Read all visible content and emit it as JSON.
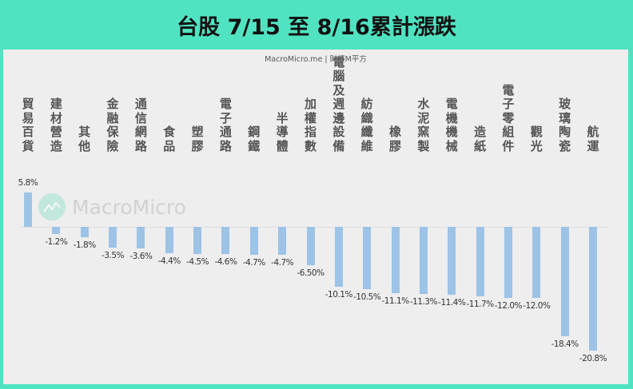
{
  "title": "台股 7/15 至 8/16累計漲跌",
  "source": "MacroMicro.me | 財經M平方",
  "watermark": "MacroMicro",
  "colors": {
    "frame": "#50e3c2",
    "bar": "#9dc3e6",
    "panel": "#eeeeee"
  },
  "chart_data": {
    "type": "bar",
    "title": "台股 7/15 至 8/16累計漲跌",
    "xlabel": "",
    "ylabel": "",
    "categories": [
      "貿易百貨",
      "建材營造",
      "其他",
      "金融保險",
      "通信網路",
      "食品",
      "塑膠",
      "電子通路",
      "鋼鐵",
      "半導體",
      "加權指數",
      "電腦及週邊設備",
      "紡織纖維",
      "橡膠",
      "水泥窯製",
      "電機機械",
      "造紙",
      "電子零組件",
      "觀光",
      "玻璃陶瓷",
      "航運"
    ],
    "values": [
      5.8,
      -1.2,
      -1.8,
      -3.5,
      -3.6,
      -4.4,
      -4.5,
      -4.6,
      -4.7,
      -4.7,
      -6.5,
      -10.1,
      -10.5,
      -11.1,
      -11.3,
      -11.4,
      -11.7,
      -12.0,
      -12.0,
      -18.4,
      -20.8
    ],
    "labels": [
      "5.8%",
      "-1.2%",
      "-1.8%",
      "-3.5%",
      "-3.6%",
      "-4.4%",
      "-4.5%",
      "-4.6%",
      "-4.7%",
      "-4.7%",
      "-6.50%",
      "-10.1%",
      "-10.5%",
      "-11.1%",
      "-11.3%",
      "-11.4%",
      "-11.7%",
      "-12.0%",
      "-12.0%",
      "-18.4%",
      "-20.8%"
    ],
    "category_position": "top",
    "grid": false,
    "legend": "none",
    "ylim": [
      -22,
      6
    ]
  }
}
